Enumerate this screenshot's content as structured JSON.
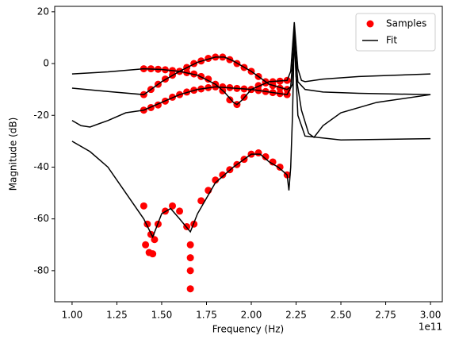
{
  "chart_data": {
    "type": "scatter-line",
    "x_label": "Frequency (Hz)",
    "y_label": "Magnitude (dB)",
    "x_offset_label": "1e11",
    "xlim": [
      0.903,
      3.066
    ],
    "ylim": [
      -92.0,
      22.1
    ],
    "xticks": [
      {
        "value": 1,
        "label": "1.00"
      },
      {
        "value": 1.25,
        "label": "1.25"
      },
      {
        "value": 1.5,
        "label": "1.50"
      },
      {
        "value": 1.75,
        "label": "1.75"
      },
      {
        "value": 2,
        "label": "2.00"
      },
      {
        "value": 2.25,
        "label": "2.25"
      },
      {
        "value": 2.5,
        "label": "2.50"
      },
      {
        "value": 2.75,
        "label": "2.75"
      },
      {
        "value": 3,
        "label": "3.00"
      }
    ],
    "yticks": [
      -80,
      -60,
      -40,
      -20,
      0,
      20
    ],
    "legend": "upper right",
    "series": [
      {
        "name": "Samples",
        "kind": "scatter",
        "color": "#ff0000",
        "x": [
          1.4,
          1.44,
          1.48,
          1.52,
          1.56,
          1.6,
          1.64,
          1.68,
          1.72,
          1.76,
          1.8,
          1.84,
          1.88,
          1.92,
          1.96,
          2.0,
          2.04,
          2.08,
          2.12,
          2.16,
          2.2,
          1.4,
          1.44,
          1.48,
          1.52,
          1.56,
          1.6,
          1.64,
          1.68,
          1.72,
          1.76,
          1.8,
          1.84,
          1.88,
          1.92,
          1.96,
          2.0,
          2.04,
          2.08,
          2.12,
          2.16,
          2.2,
          1.4,
          1.44,
          1.48,
          1.52,
          1.56,
          1.6,
          1.64,
          1.68,
          1.72,
          1.76,
          1.8,
          1.84,
          1.88,
          1.92,
          1.96,
          2.0,
          2.04,
          2.08,
          2.12,
          2.16,
          2.2,
          1.4,
          1.42,
          1.44,
          1.46,
          1.48,
          1.52,
          1.56,
          1.6,
          1.64,
          1.66,
          1.68,
          1.72,
          1.76,
          1.8,
          1.84,
          1.88,
          1.92,
          1.96,
          2.0,
          2.04,
          2.08,
          2.12,
          2.16,
          2.2,
          1.41,
          1.43,
          1.45,
          1.66,
          1.66,
          1.66
        ],
        "values": [
          -2,
          -2,
          -2.2,
          -2.4,
          -2.7,
          -3,
          -3.5,
          -4,
          -5,
          -6,
          -8,
          -10.5,
          -14,
          -15.8,
          -13,
          -10,
          -8.5,
          -7.5,
          -7,
          -6.8,
          -6.5,
          -12,
          -10,
          -8,
          -6,
          -4.5,
          -3,
          -1.5,
          0,
          1,
          2,
          2.5,
          2.5,
          1.5,
          0,
          -1.5,
          -3,
          -5,
          -7,
          -8.5,
          -9.5,
          -10,
          -18,
          -17,
          -16,
          -14.5,
          -13,
          -12,
          -11,
          -10.3,
          -9.8,
          -9.3,
          -9,
          -9,
          -9.3,
          -9.6,
          -9.8,
          -10,
          -10.4,
          -10.8,
          -11.2,
          -11.6,
          -12,
          -55,
          -62,
          -66,
          -68,
          -62,
          -57,
          -55,
          -57,
          -63,
          -70,
          -62,
          -53,
          -49,
          -45,
          -43,
          -41,
          -39,
          -37,
          -35,
          -34.5,
          -36,
          -38,
          -40,
          -43,
          -70,
          -73,
          -73.5,
          -80,
          -87,
          -75
        ]
      },
      {
        "name": "Fit",
        "kind": "line",
        "color": "#000000",
        "curves": [
          {
            "x": [
              1.0,
              1.2,
              1.4,
              1.5,
              1.6,
              1.7,
              1.8,
              1.85,
              1.9,
              1.92,
              1.95,
              2.0,
              2.1,
              2.2,
              2.22,
              2.24,
              2.26,
              2.28,
              2.3,
              2.4,
              2.6,
              2.8,
              3.0
            ],
            "values": [
              -4,
              -3.2,
              -2,
              -2.3,
              -3,
              -4.5,
              -8,
              -11,
              -15,
              -15.8,
              -14,
              -10,
              -7,
              -6.5,
              -3,
              16,
              -2,
              -6.5,
              -7,
              -6,
              -5,
              -4.5,
              -4
            ]
          },
          {
            "x": [
              1.0,
              1.2,
              1.4,
              1.5,
              1.6,
              1.7,
              1.8,
              1.85,
              1.9,
              2.0,
              2.1,
              2.2,
              2.22,
              2.24,
              2.26,
              2.3,
              2.4,
              2.6,
              3.0
            ],
            "values": [
              -9.5,
              -10.8,
              -12,
              -7,
              -3,
              0.5,
              2.5,
              2.5,
              1,
              -3,
              -8,
              -10,
              -9,
              10,
              -7,
              -10,
              -11,
              -11.5,
              -12
            ]
          },
          {
            "x": [
              1.0,
              1.05,
              1.1,
              1.2,
              1.3,
              1.4,
              1.5,
              1.6,
              1.7,
              1.8,
              1.9,
              2.0,
              2.1,
              2.2,
              2.23,
              2.24,
              2.25,
              2.28,
              2.32,
              2.35,
              2.4,
              2.5,
              2.7,
              3.0
            ],
            "values": [
              -22,
              -24,
              -24.5,
              -22,
              -19,
              -18,
              -15,
              -12,
              -10,
              -9,
              -9.5,
              -10,
              -11,
              -12,
              -8,
              14,
              -5,
              -18,
              -27,
              -28.5,
              -24,
              -19,
              -15,
              -12
            ]
          },
          {
            "x": [
              1.0,
              1.1,
              1.2,
              1.3,
              1.4,
              1.45,
              1.5,
              1.55,
              1.6,
              1.66,
              1.7,
              1.8,
              1.9,
              2.0,
              2.05,
              2.1,
              2.15,
              2.2,
              2.21,
              2.22,
              2.23,
              2.24,
              2.26,
              2.3,
              2.5,
              3.0
            ],
            "values": [
              -30,
              -34,
              -40,
              -50,
              -60,
              -67,
              -58,
              -56,
              -60,
              -65,
              -58,
              -46,
              -40,
              -35,
              -35,
              -38,
              -40,
              -43,
              -49,
              -40,
              -20,
              10,
              -20,
              -28,
              -29.5,
              -29
            ]
          }
        ]
      }
    ]
  }
}
